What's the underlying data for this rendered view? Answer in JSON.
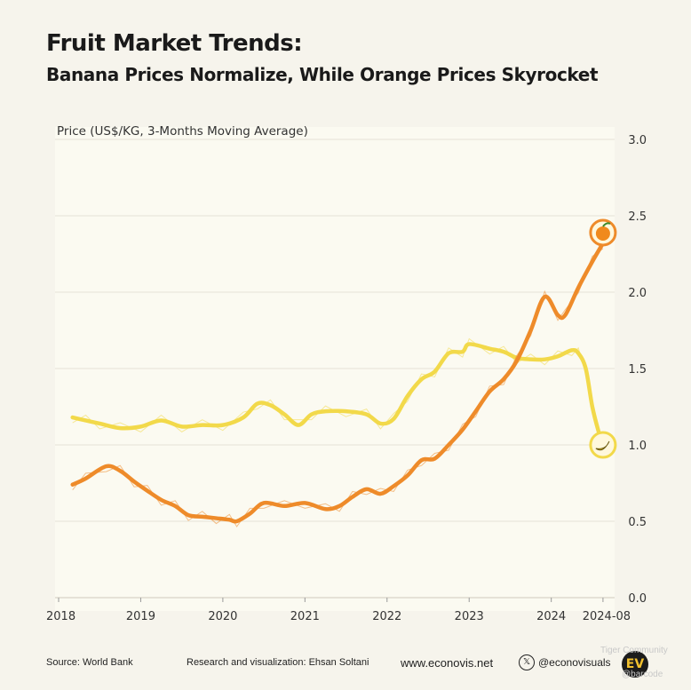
{
  "header": {
    "title": "Fruit Market Trends:",
    "subtitle": "Banana Prices Normalize, While Orange Prices Skyrocket"
  },
  "chart_data": {
    "type": "line",
    "ylabel": "Price (US$/KG, 3-Months Moving Average)",
    "ylim": [
      0,
      3.0
    ],
    "yticks": [
      "0.0",
      "0.5",
      "1.0",
      "1.5",
      "2.0",
      "2.5",
      "3.0"
    ],
    "xlim": [
      2018.0,
      2024.75
    ],
    "xticks": [
      {
        "value": 2018,
        "label": "2018"
      },
      {
        "value": 2019,
        "label": "2019"
      },
      {
        "value": 2020,
        "label": "2020"
      },
      {
        "value": 2021,
        "label": "2021"
      },
      {
        "value": 2022,
        "label": "2022"
      },
      {
        "value": 2023,
        "label": "2023"
      },
      {
        "value": 2024,
        "label": "2024"
      },
      {
        "value": 2024.63,
        "label": "2024-08"
      }
    ],
    "grid": true,
    "series": [
      {
        "key": "banana",
        "color": "#f2d94a",
        "icon": "banana-icon",
        "x": [
          2018.17,
          2018.33,
          2018.5,
          2018.75,
          2019.0,
          2019.25,
          2019.5,
          2019.75,
          2020.0,
          2020.25,
          2020.42,
          2020.58,
          2020.75,
          2020.92,
          2021.08,
          2021.25,
          2021.5,
          2021.75,
          2021.92,
          2022.08,
          2022.25,
          2022.42,
          2022.58,
          2022.75,
          2022.92,
          2023.0,
          2023.25,
          2023.42,
          2023.58,
          2023.75,
          2023.92,
          2024.08,
          2024.25,
          2024.33,
          2024.42,
          2024.5,
          2024.58,
          2024.63
        ],
        "values": [
          1.18,
          1.16,
          1.14,
          1.11,
          1.12,
          1.16,
          1.12,
          1.13,
          1.13,
          1.18,
          1.27,
          1.26,
          1.2,
          1.13,
          1.2,
          1.22,
          1.22,
          1.2,
          1.14,
          1.17,
          1.32,
          1.43,
          1.48,
          1.6,
          1.61,
          1.66,
          1.63,
          1.61,
          1.57,
          1.56,
          1.56,
          1.58,
          1.62,
          1.6,
          1.5,
          1.25,
          1.08,
          1.0
        ]
      },
      {
        "key": "orange",
        "color": "#ee8b2a",
        "icon": "orange-icon",
        "x": [
          2018.17,
          2018.33,
          2018.58,
          2018.75,
          2018.92,
          2019.08,
          2019.25,
          2019.42,
          2019.58,
          2019.75,
          2019.92,
          2020.08,
          2020.17,
          2020.33,
          2020.5,
          2020.75,
          2021.0,
          2021.25,
          2021.42,
          2021.58,
          2021.75,
          2021.92,
          2022.08,
          2022.25,
          2022.42,
          2022.58,
          2022.75,
          2022.92,
          2023.08,
          2023.25,
          2023.42,
          2023.58,
          2023.75,
          2023.92,
          2024.08,
          2024.17,
          2024.33,
          2024.5,
          2024.63
        ],
        "values": [
          0.74,
          0.78,
          0.86,
          0.83,
          0.76,
          0.7,
          0.64,
          0.6,
          0.54,
          0.53,
          0.52,
          0.51,
          0.5,
          0.55,
          0.62,
          0.6,
          0.62,
          0.58,
          0.6,
          0.66,
          0.71,
          0.68,
          0.73,
          0.8,
          0.9,
          0.91,
          1.0,
          1.1,
          1.22,
          1.35,
          1.43,
          1.55,
          1.75,
          1.97,
          1.85,
          1.85,
          2.03,
          2.2,
          2.32
        ]
      }
    ]
  },
  "footer": {
    "source": "Source: World Bank",
    "credit": "Research and visualization: Ehsan Soltani",
    "website": "www.econovis.net",
    "handle": "@econovisuals",
    "logo_text": "EV",
    "watermark1": "Tiger Community",
    "watermark2": "@barcode"
  }
}
